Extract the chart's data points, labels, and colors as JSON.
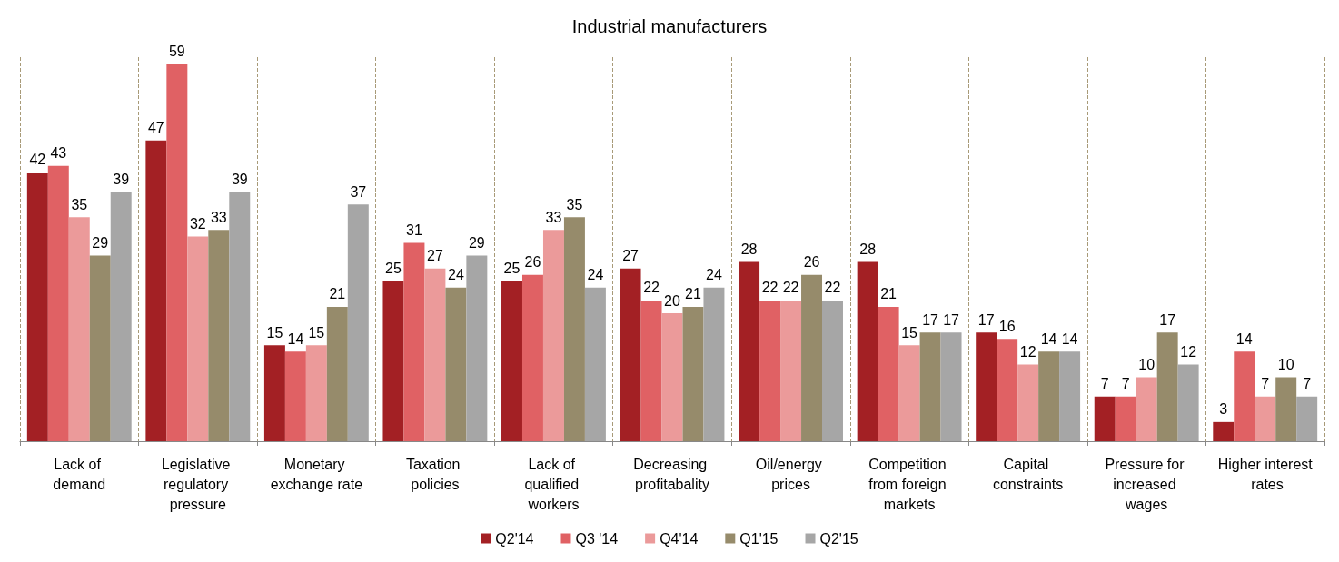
{
  "chart_data": {
    "type": "bar",
    "title": "Industrial manufacturers",
    "categories": [
      "Lack of demand",
      "Legislative regulatory pressure",
      "Monetary exchange rate",
      "Taxation policies",
      "Lack of qualified workers",
      "Decreasing profitabality",
      "Oil/energy prices",
      "Competition from foreign markets",
      "Capital constraints",
      "Pressure for increased wages",
      "Higher interest rates"
    ],
    "series": [
      {
        "name": "Q2'14",
        "color": "#a32024",
        "values": [
          42,
          47,
          15,
          25,
          25,
          27,
          28,
          28,
          17,
          7,
          3
        ]
      },
      {
        "name": "Q3 '14",
        "color": "#e06164",
        "values": [
          43,
          59,
          14,
          31,
          26,
          22,
          22,
          21,
          16,
          7,
          14
        ]
      },
      {
        "name": "Q4'14",
        "color": "#eb9a9a",
        "values": [
          35,
          32,
          15,
          27,
          33,
          20,
          22,
          15,
          12,
          10,
          7
        ]
      },
      {
        "name": "Q1'15",
        "color": "#968b6b",
        "values": [
          29,
          33,
          21,
          24,
          35,
          21,
          26,
          17,
          14,
          17,
          10
        ]
      },
      {
        "name": "Q2'15",
        "color": "#a6a6a6",
        "values": [
          39,
          39,
          37,
          29,
          24,
          24,
          22,
          17,
          14,
          12,
          7
        ]
      }
    ],
    "data_labels": true,
    "grid": "x",
    "legend": "bottom"
  }
}
